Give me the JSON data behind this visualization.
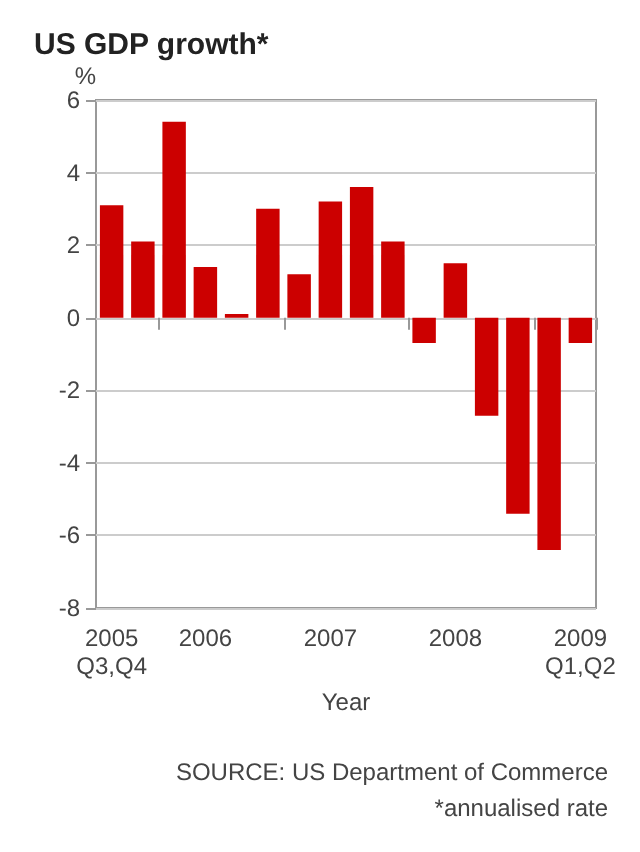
{
  "chart_data": {
    "type": "bar",
    "title": "US GDP growth*",
    "ylabel": "%",
    "xlabel": "Year",
    "annotations": [
      "SOURCE: US Department of Commerce",
      "*annualised rate"
    ],
    "categories": [
      "2005\nQ3,Q4",
      null,
      null,
      "2006",
      null,
      null,
      null,
      "2007",
      null,
      null,
      null,
      "2008",
      null,
      null,
      null,
      "2009\nQ1,Q2"
    ],
    "values": [
      3.1,
      2.1,
      5.4,
      1.4,
      0.1,
      3.0,
      1.2,
      3.2,
      3.6,
      2.1,
      -0.7,
      1.5,
      -2.7,
      -5.4,
      -6.4,
      -0.7
    ],
    "color": "#cc0000",
    "ylim": [
      -8,
      6
    ],
    "yticks": [
      -8,
      -6,
      -4,
      -2,
      0,
      2,
      4,
      6
    ],
    "grid": "y"
  }
}
